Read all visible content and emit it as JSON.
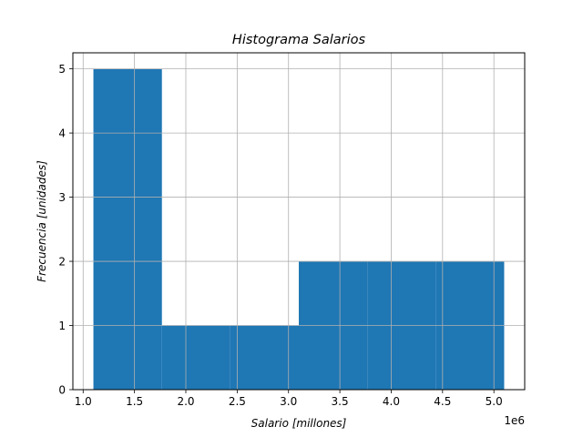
{
  "chart_data": {
    "type": "bar",
    "title": "Histograma Salarios",
    "xlabel": "Salario [millones]",
    "ylabel": "Frecuencia [unidades]",
    "offset_label": "1e6",
    "xlim": [
      0.9,
      5.3
    ],
    "ylim": [
      0,
      5.25
    ],
    "grid": true,
    "bar_color": "#1f77b4",
    "bins": [
      {
        "x0": 1.1,
        "x1": 1.767,
        "count": 5
      },
      {
        "x0": 1.767,
        "x1": 2.433,
        "count": 1
      },
      {
        "x0": 2.433,
        "x1": 3.1,
        "count": 1
      },
      {
        "x0": 3.1,
        "x1": 3.767,
        "count": 2
      },
      {
        "x0": 3.767,
        "x1": 4.433,
        "count": 2
      },
      {
        "x0": 4.433,
        "x1": 5.1,
        "count": 2
      }
    ],
    "x_ticks": [
      {
        "value": 1.0,
        "label": "1.0"
      },
      {
        "value": 1.5,
        "label": "1.5"
      },
      {
        "value": 2.0,
        "label": "2.0"
      },
      {
        "value": 2.5,
        "label": "2.5"
      },
      {
        "value": 3.0,
        "label": "3.0"
      },
      {
        "value": 3.5,
        "label": "3.5"
      },
      {
        "value": 4.0,
        "label": "4.0"
      },
      {
        "value": 4.5,
        "label": "4.5"
      },
      {
        "value": 5.0,
        "label": "5.0"
      }
    ],
    "y_ticks": [
      {
        "value": 0,
        "label": "0"
      },
      {
        "value": 1,
        "label": "1"
      },
      {
        "value": 2,
        "label": "2"
      },
      {
        "value": 3,
        "label": "3"
      },
      {
        "value": 4,
        "label": "4"
      },
      {
        "value": 5,
        "label": "5"
      }
    ]
  }
}
